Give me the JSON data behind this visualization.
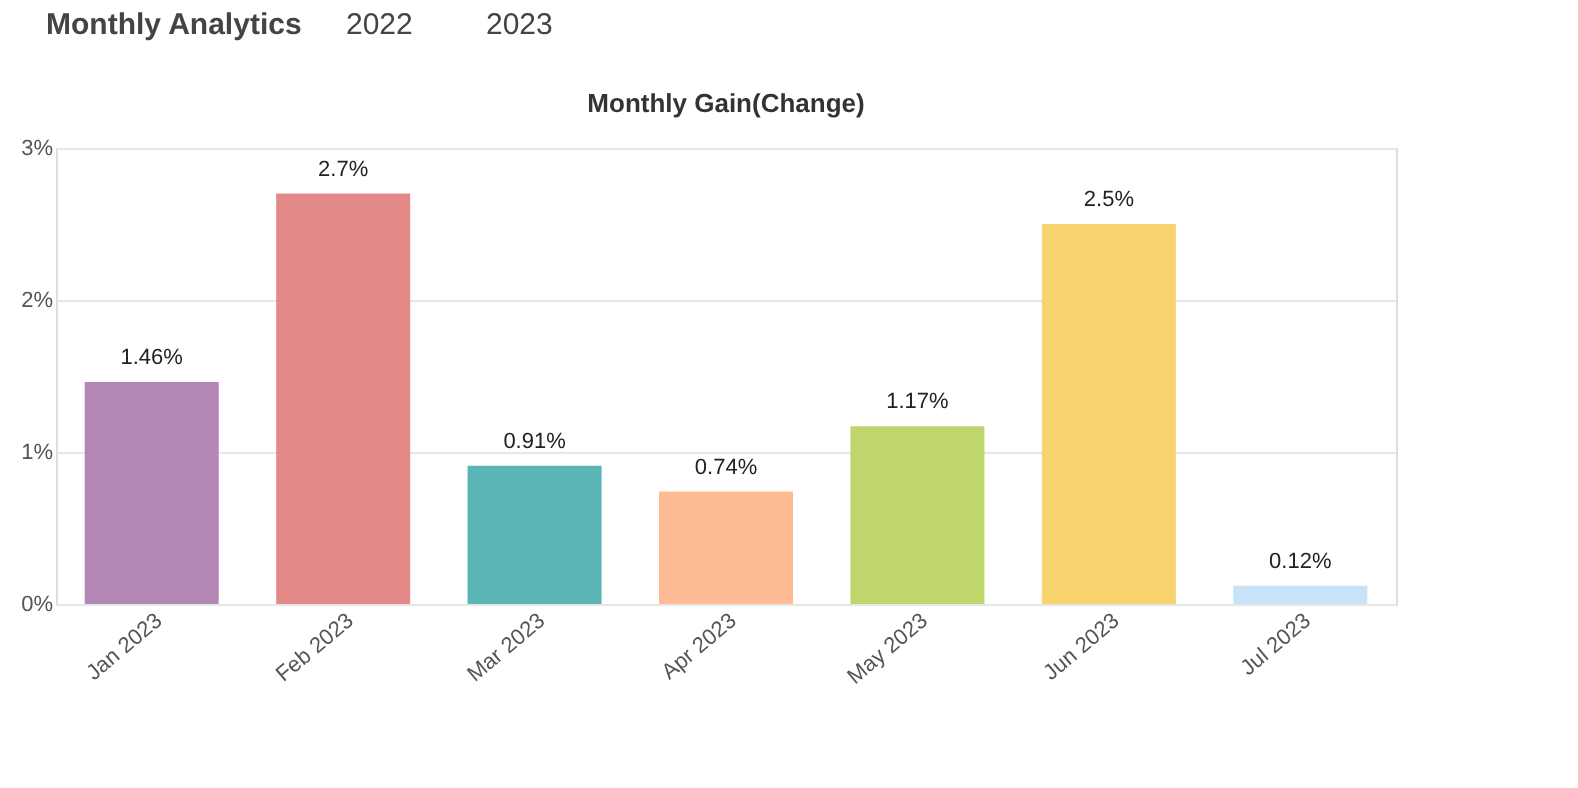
{
  "chart_data": {
    "type": "bar",
    "title": "Monthly Gain(Change)",
    "annotations": [
      "Monthly Analytics",
      "2022",
      "2023"
    ],
    "categories": [
      "Jan 2023",
      "Feb 2023",
      "Mar 2023",
      "Apr 2023",
      "May 2023",
      "Jun 2023",
      "Jul 2023"
    ],
    "values": [
      1.46,
      2.7,
      0.91,
      0.74,
      1.17,
      2.5,
      0.12
    ],
    "value_labels": [
      "1.46%",
      "2.7%",
      "0.91%",
      "0.74%",
      "1.17%",
      "2.5%",
      "0.12%"
    ],
    "colors": [
      "#b386b3",
      "#e38a88",
      "#5bb5b5",
      "#ffbb94",
      "#bed66b",
      "#f7d36f",
      "#c8e3f7"
    ],
    "ylim": [
      0,
      3
    ],
    "yticks": [
      {
        "value": 0,
        "label": "0%"
      },
      {
        "value": 1,
        "label": "1%"
      },
      {
        "value": 2,
        "label": "2%"
      },
      {
        "value": 3,
        "label": "3%"
      }
    ],
    "grid": "y"
  }
}
